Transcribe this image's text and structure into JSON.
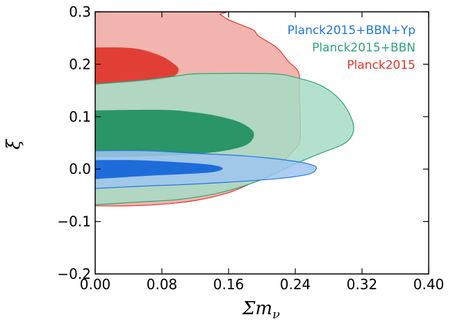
{
  "chart_data": {
    "type": "contour",
    "xlabel_main": "Σm",
    "xlabel_sub": "ν",
    "ylabel": "ξ",
    "xlim": [
      0.0,
      0.4
    ],
    "ylim": [
      -0.2,
      0.3
    ],
    "xticks": [
      0.0,
      0.08,
      0.16,
      0.24,
      0.32,
      0.4
    ],
    "xtick_labels": [
      "0.00",
      "0.08",
      "0.16",
      "0.24",
      "0.32",
      "0.40"
    ],
    "yticks": [
      -0.2,
      -0.1,
      0.0,
      0.1,
      0.2,
      0.3
    ],
    "ytick_labels": [
      "−0.2",
      "−0.1",
      "0.0",
      "0.1",
      "0.2",
      "0.3"
    ],
    "legend_position": "top-right",
    "legend": [
      {
        "label": "Planck2015+BBN+Yp",
        "color": "#1f77e0"
      },
      {
        "label": "Planck2015+BBN",
        "color": "#2ca57a"
      },
      {
        "label": "Planck2015",
        "color": "#e0352b"
      }
    ],
    "series": [
      {
        "name": "Planck2015",
        "fill_68": "#e0352b",
        "fill_95": "#f0a7a0",
        "edge": "#e0352b",
        "contour_95": [
          [
            0.0,
            0.3
          ],
          [
            0.145,
            0.3
          ],
          [
            0.15,
            0.295
          ],
          [
            0.16,
            0.285
          ],
          [
            0.175,
            0.275
          ],
          [
            0.19,
            0.265
          ],
          [
            0.195,
            0.255
          ],
          [
            0.205,
            0.245
          ],
          [
            0.215,
            0.235
          ],
          [
            0.222,
            0.225
          ],
          [
            0.232,
            0.205
          ],
          [
            0.242,
            0.19
          ],
          [
            0.245,
            0.175
          ],
          [
            0.245,
            0.14
          ],
          [
            0.246,
            0.1
          ],
          [
            0.246,
            0.06
          ],
          [
            0.243,
            0.045
          ],
          [
            0.232,
            0.025
          ],
          [
            0.222,
            0.01
          ],
          [
            0.21,
            -0.01
          ],
          [
            0.19,
            -0.025
          ],
          [
            0.16,
            -0.045
          ],
          [
            0.12,
            -0.06
          ],
          [
            0.08,
            -0.067
          ],
          [
            0.04,
            -0.07
          ],
          [
            0.0,
            -0.07
          ]
        ],
        "contour_68": [
          [
            0.0,
            0.232
          ],
          [
            0.03,
            0.232
          ],
          [
            0.055,
            0.228
          ],
          [
            0.08,
            0.215
          ],
          [
            0.095,
            0.2
          ],
          [
            0.1,
            0.19
          ],
          [
            0.095,
            0.178
          ],
          [
            0.075,
            0.17
          ],
          [
            0.04,
            0.165
          ],
          [
            0.0,
            0.163
          ]
        ]
      },
      {
        "name": "Planck2015+BBN",
        "fill_68": "#1e8f5e",
        "fill_95": "#a6dcc6",
        "edge": "#2ca57a",
        "contour_95": [
          [
            0.0,
            0.162
          ],
          [
            0.06,
            0.17
          ],
          [
            0.1,
            0.178
          ],
          [
            0.125,
            0.182
          ],
          [
            0.21,
            0.182
          ],
          [
            0.24,
            0.175
          ],
          [
            0.27,
            0.16
          ],
          [
            0.292,
            0.135
          ],
          [
            0.305,
            0.105
          ],
          [
            0.31,
            0.075
          ],
          [
            0.3,
            0.05
          ],
          [
            0.27,
            0.03
          ],
          [
            0.24,
            0.01
          ],
          [
            0.2,
            -0.02
          ],
          [
            0.15,
            -0.045
          ],
          [
            0.1,
            -0.058
          ],
          [
            0.05,
            -0.063
          ],
          [
            0.0,
            -0.068
          ]
        ],
        "contour_68": [
          [
            0.0,
            0.112
          ],
          [
            0.08,
            0.113
          ],
          [
            0.12,
            0.108
          ],
          [
            0.15,
            0.1
          ],
          [
            0.175,
            0.088
          ],
          [
            0.19,
            0.07
          ],
          [
            0.185,
            0.05
          ],
          [
            0.165,
            0.038
          ],
          [
            0.13,
            0.03
          ],
          [
            0.08,
            0.025
          ],
          [
            0.0,
            0.023
          ]
        ]
      },
      {
        "name": "Planck2015+BBN+Yp",
        "fill_68": "#1264d8",
        "fill_95": "#9fc4f0",
        "edge": "#1f77e0",
        "contour_95": [
          [
            0.0,
            0.035
          ],
          [
            0.06,
            0.035
          ],
          [
            0.12,
            0.03
          ],
          [
            0.18,
            0.025
          ],
          [
            0.23,
            0.017
          ],
          [
            0.26,
            0.008
          ],
          [
            0.265,
            0.0
          ],
          [
            0.255,
            -0.01
          ],
          [
            0.22,
            -0.018
          ],
          [
            0.16,
            -0.025
          ],
          [
            0.1,
            -0.03
          ],
          [
            0.05,
            -0.033
          ],
          [
            0.0,
            -0.037
          ]
        ],
        "contour_68": [
          [
            0.0,
            0.017
          ],
          [
            0.05,
            0.017
          ],
          [
            0.1,
            0.013
          ],
          [
            0.14,
            0.008
          ],
          [
            0.153,
            0.001
          ],
          [
            0.14,
            -0.006
          ],
          [
            0.1,
            -0.01
          ],
          [
            0.05,
            -0.014
          ],
          [
            0.0,
            -0.019
          ]
        ]
      }
    ]
  }
}
